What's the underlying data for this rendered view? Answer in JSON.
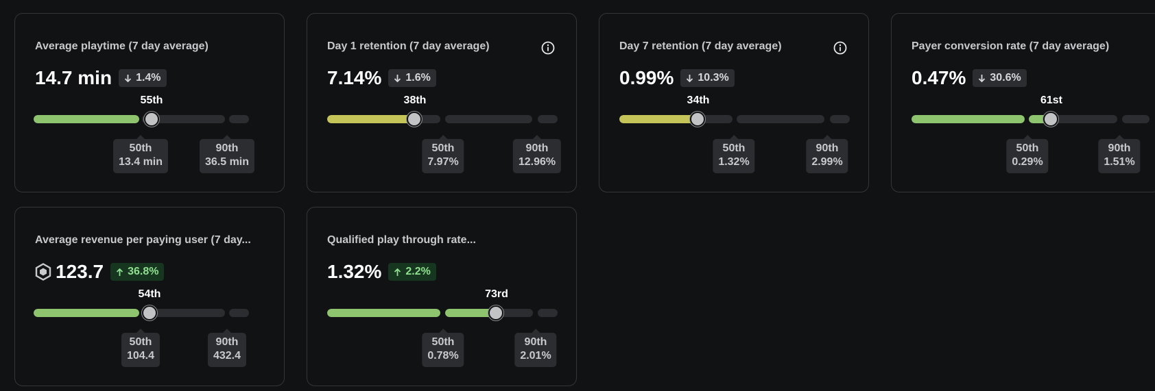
{
  "colors": {
    "green": "#8dc46d",
    "yellow_green": "#c4c458",
    "track": "#2c2d31",
    "up_badge_bg": "#16361f",
    "up_badge_text": "#8fe08f",
    "down_badge_bg": "#2c2d31"
  },
  "cards": [
    {
      "title": "Average playtime (7 day average)",
      "value": "14.7 min",
      "change": "1.4%",
      "direction": "down",
      "has_info": false,
      "rank": "55th",
      "p50_label": "50th",
      "p50_value": "13.4 min",
      "p90_label": "90th",
      "p90_value": "36.5 min"
    },
    {
      "title": "Day 1 retention (7 day average)",
      "value": "7.14%",
      "change": "1.6%",
      "direction": "down",
      "has_info": true,
      "info_icon": "info-icon",
      "rank": "38th",
      "p50_label": "50th",
      "p50_value": "7.97%",
      "p90_label": "90th",
      "p90_value": "12.96%"
    },
    {
      "title": "Day 7 retention (7 day average)",
      "value": "0.99%",
      "change": "10.3%",
      "direction": "down",
      "has_info": true,
      "info_icon": "info-icon",
      "rank": "34th",
      "p50_label": "50th",
      "p50_value": "1.32%",
      "p90_label": "90th",
      "p90_value": "2.99%"
    },
    {
      "title": "Payer conversion rate (7 day average)",
      "value": "0.47%",
      "change": "30.6%",
      "direction": "down",
      "has_info": false,
      "rank": "61st",
      "p50_label": "50th",
      "p50_value": "0.29%",
      "p90_label": "90th",
      "p90_value": "1.51%"
    },
    {
      "title": "Average revenue per paying user (7 day...",
      "value": "123.7",
      "currency_icon": "robux-icon",
      "change": "36.8%",
      "direction": "up",
      "has_info": false,
      "rank": "54th",
      "p50_label": "50th",
      "p50_value": "104.4",
      "p90_label": "90th",
      "p90_value": "432.4"
    },
    {
      "title": "Qualified play through rate...",
      "value": "1.32%",
      "change": "2.2%",
      "direction": "up",
      "has_info": false,
      "rank": "73rd",
      "p50_label": "50th",
      "p50_value": "0.78%",
      "p90_label": "90th",
      "p90_value": "2.01%"
    }
  ]
}
